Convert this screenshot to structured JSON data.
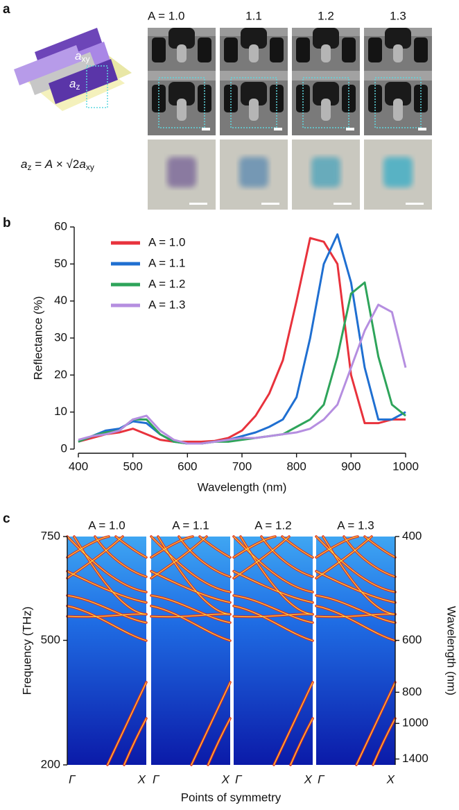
{
  "figure": {
    "panel_labels": [
      "a",
      "b",
      "c"
    ]
  },
  "panel_a": {
    "titles": [
      "A = 1.0",
      "1.1",
      "1.2",
      "1.3"
    ],
    "schematic_labels": {
      "axy": [
        "a",
        "xy"
      ],
      "az": [
        "a",
        "z"
      ]
    },
    "formula": [
      "a",
      "z",
      " = ",
      "A",
      " × √2",
      "a",
      "xy"
    ]
  },
  "chart_data": [
    {
      "type": "line",
      "xlabel": "Wavelength (nm)",
      "ylabel": "Reflectance (%)",
      "xlim": [
        400,
        1000
      ],
      "ylim": [
        0,
        60
      ],
      "xticks": [
        400,
        500,
        600,
        700,
        800,
        900,
        1000
      ],
      "yticks": [
        0,
        10,
        20,
        30,
        40,
        50,
        60
      ],
      "legend": "upper left",
      "x": [
        400,
        425,
        450,
        475,
        500,
        525,
        550,
        575,
        600,
        625,
        650,
        675,
        700,
        725,
        750,
        775,
        800,
        825,
        850,
        875,
        900,
        925,
        950,
        975,
        1000
      ],
      "series": [
        {
          "name": "A = 1.0",
          "color": "#e8323c",
          "values": [
            2,
            3,
            4,
            4.5,
            5.5,
            4,
            2.5,
            2,
            2,
            2,
            2.2,
            3,
            5,
            9,
            15,
            24,
            40,
            57,
            56,
            50,
            20,
            7,
            7,
            8,
            8
          ]
        },
        {
          "name": "A = 1.1",
          "color": "#1f6fd1",
          "values": [
            2,
            3.5,
            5,
            5.5,
            7.5,
            7,
            4,
            2,
            1.5,
            1.5,
            2,
            2.5,
            3.5,
            4.5,
            6,
            8,
            14,
            30,
            50,
            58,
            45,
            22,
            8,
            8,
            10
          ]
        },
        {
          "name": "A = 1.2",
          "color": "#2ea45a",
          "values": [
            2,
            3.5,
            4.5,
            5,
            8,
            8,
            4,
            2,
            1.5,
            1.5,
            2,
            2,
            2.5,
            3,
            3.5,
            4,
            6,
            8,
            12,
            25,
            42,
            45,
            25,
            12,
            9
          ]
        },
        {
          "name": "A = 1.3",
          "color": "#b58ee0",
          "values": [
            2.5,
            3.5,
            4,
            5,
            8,
            9,
            5,
            2.5,
            1.5,
            1.5,
            2,
            2.5,
            3,
            3,
            3.5,
            4,
            4.5,
            5.5,
            8,
            12,
            22,
            32,
            39,
            37,
            22
          ]
        }
      ]
    },
    {
      "type": "band",
      "panels": [
        "A = 1.0",
        "A = 1.1",
        "A = 1.2",
        "A = 1.3"
      ],
      "xlabel": "Points of symmetry",
      "ylabel": "Frequency (THz)",
      "y2label": "Wavelength (nm)",
      "xticklabels": [
        "Γ",
        "X"
      ],
      "ylim": [
        200,
        750
      ],
      "yticks": [
        200,
        500,
        750
      ],
      "y2scale": "reciprocal",
      "y2lim": [
        1499,
        400
      ],
      "y2ticks": [
        400,
        600,
        800,
        1000,
        1400
      ]
    }
  ]
}
